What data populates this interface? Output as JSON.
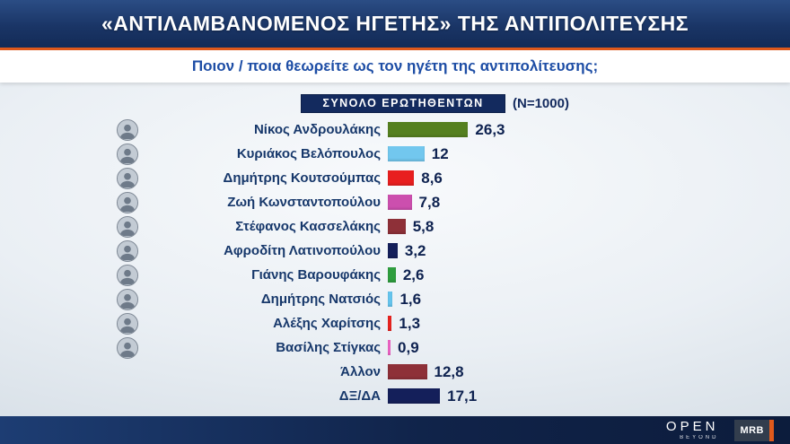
{
  "header": {
    "title": "«ΑΝΤΙΛΑΜΒΑΝΟΜΕΝΟΣ ΗΓΕΤΗΣ» ΤΗΣ ΑΝΤΙΠΟΛΙΤΕΥΣΗΣ",
    "subtitle": "Ποιον / ποια θεωρείτε ως τον ηγέτη της αντιπολίτευσης;"
  },
  "chart_header": {
    "label": "ΣΥΝΟΛΟ ΕΡΩΤΗΘΕΝΤΩΝ",
    "sample": "(N=1000)"
  },
  "colors": {
    "accent_orange": "#e05a1c",
    "navy": "#132a5e"
  },
  "chart_data": {
    "type": "bar",
    "orientation": "horizontal",
    "title": "«ΑΝΤΙΛΑΜΒΑΝΟΜΕΝΟΣ ΗΓΕΤΗΣ» ΤΗΣ ΑΝΤΙΠΟΛΙΤΕΥΣΗΣ",
    "subtitle": "ΣΥΝΟΛΟ ΕΡΩΤΗΘΕΝΤΩΝ (N=1000)",
    "xlim": [
      0,
      30
    ],
    "grid": false,
    "legend": false,
    "rows": [
      {
        "name": "Νίκος Ανδρουλάκης",
        "value": 26.3,
        "label": "26,3",
        "color": "#55801f",
        "has_avatar": true
      },
      {
        "name": "Κυριάκος Βελόπουλος",
        "value": 12,
        "label": "12",
        "color": "#72c7ee",
        "has_avatar": true
      },
      {
        "name": "Δημήτρης Κουτσούμπας",
        "value": 8.6,
        "label": "8,6",
        "color": "#e81f1f",
        "has_avatar": true
      },
      {
        "name": "Ζωή Κωνσταντοπούλου",
        "value": 7.8,
        "label": "7,8",
        "color": "#cc4fae",
        "has_avatar": true
      },
      {
        "name": "Στέφανος Κασσελάκης",
        "value": 5.8,
        "label": "5,8",
        "color": "#8e3038",
        "has_avatar": true
      },
      {
        "name": "Αφροδίτη Λατινοπούλου",
        "value": 3.2,
        "label": "3,2",
        "color": "#141f5a",
        "has_avatar": true
      },
      {
        "name": "Γιάνης Βαρουφάκης",
        "value": 2.6,
        "label": "2,6",
        "color": "#2f9e3f",
        "has_avatar": true
      },
      {
        "name": "Δημήτρης Νατσιός",
        "value": 1.6,
        "label": "1,6",
        "color": "#66c5ee",
        "has_avatar": true
      },
      {
        "name": "Αλέξης Χαρίτσης",
        "value": 1.3,
        "label": "1,3",
        "color": "#e8231f",
        "has_avatar": true
      },
      {
        "name": "Βασίλης Στίγκας",
        "value": 0.9,
        "label": "0,9",
        "color": "#ef64c6",
        "has_avatar": true
      },
      {
        "name": "Άλλον",
        "value": 12.8,
        "label": "12,8",
        "color": "#8e3038",
        "has_avatar": false
      },
      {
        "name": "ΔΞ/ΔΑ",
        "value": 17.1,
        "label": "17,1",
        "color": "#141f5a",
        "has_avatar": false
      }
    ]
  },
  "footer": {
    "open_logo": "OPEN",
    "beyond_label": "BEYOND",
    "mrb_logo": "MRB"
  }
}
